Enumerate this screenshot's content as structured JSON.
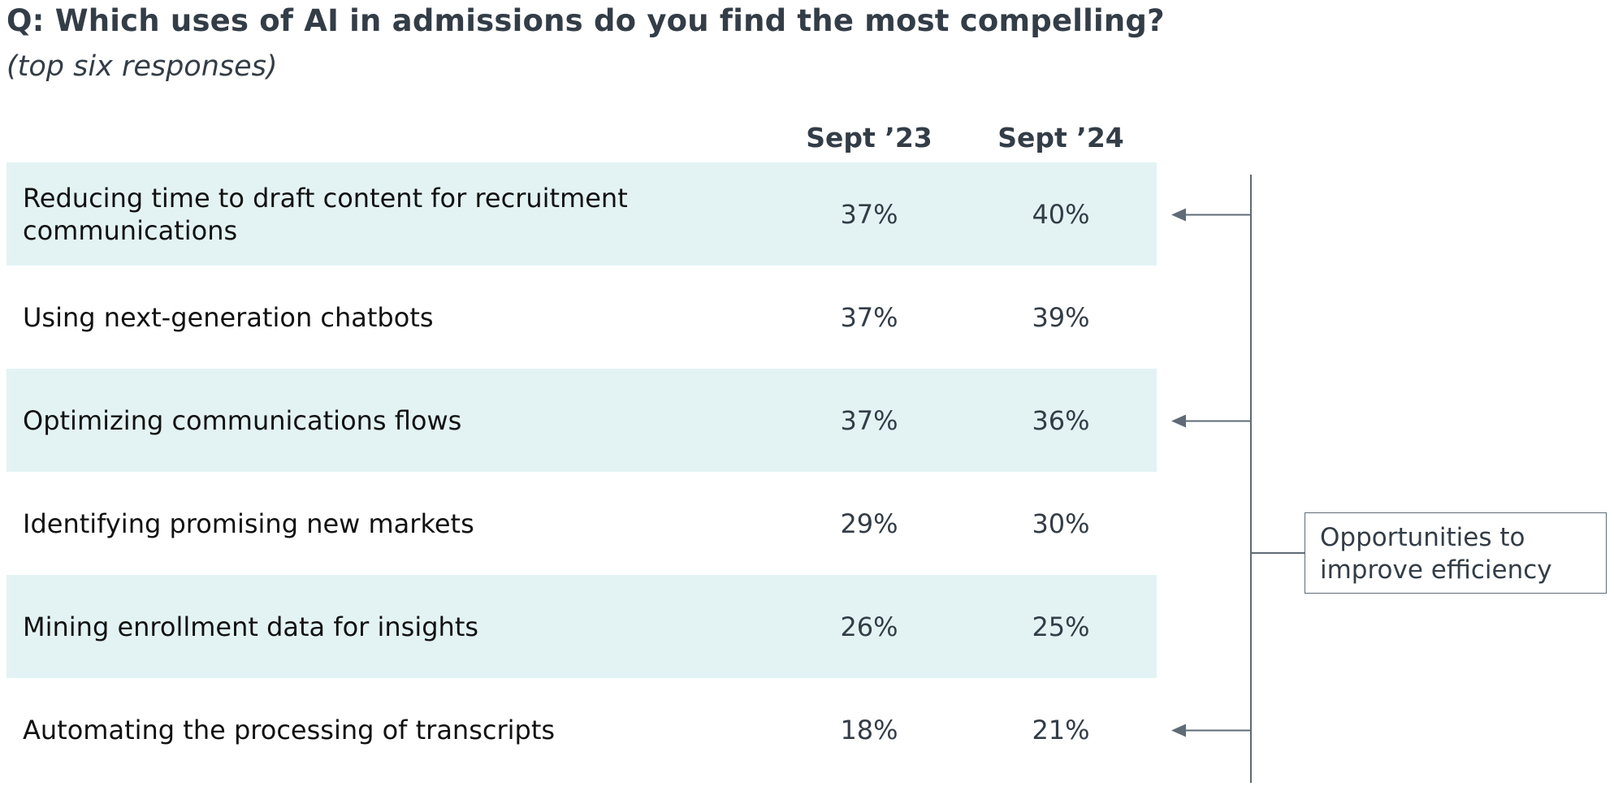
{
  "chart_data": {
    "type": "table",
    "title": "Q: Which uses of AI in admissions do you find the most compelling?",
    "subtitle": "(top six responses)",
    "columns": [
      "Sept ’23",
      "Sept ’24"
    ],
    "rows": [
      {
        "label": "Reducing time to draft content for recruitment communications",
        "values": [
          "37%",
          "40%"
        ],
        "shaded": true,
        "arrow": true
      },
      {
        "label": "Using next-generation chatbots",
        "values": [
          "37%",
          "39%"
        ],
        "shaded": false,
        "arrow": false
      },
      {
        "label": "Optimizing communications flows",
        "values": [
          "37%",
          "36%"
        ],
        "shaded": true,
        "arrow": true
      },
      {
        "label": "Identifying promising new markets",
        "values": [
          "29%",
          "30%"
        ],
        "shaded": false,
        "arrow": false
      },
      {
        "label": "Mining enrollment data for insights",
        "values": [
          "26%",
          "25%"
        ],
        "shaded": true,
        "arrow": false
      },
      {
        "label": "Automating the processing of transcripts",
        "values": [
          "18%",
          "21%"
        ],
        "shaded": false,
        "arrow": true
      }
    ],
    "annotation": "Opportunities to improve efficiency",
    "colors": {
      "row_shade": "#e3f3f4",
      "text": "#111111",
      "header": "#333d47",
      "bracket": "#5f6b76"
    }
  }
}
